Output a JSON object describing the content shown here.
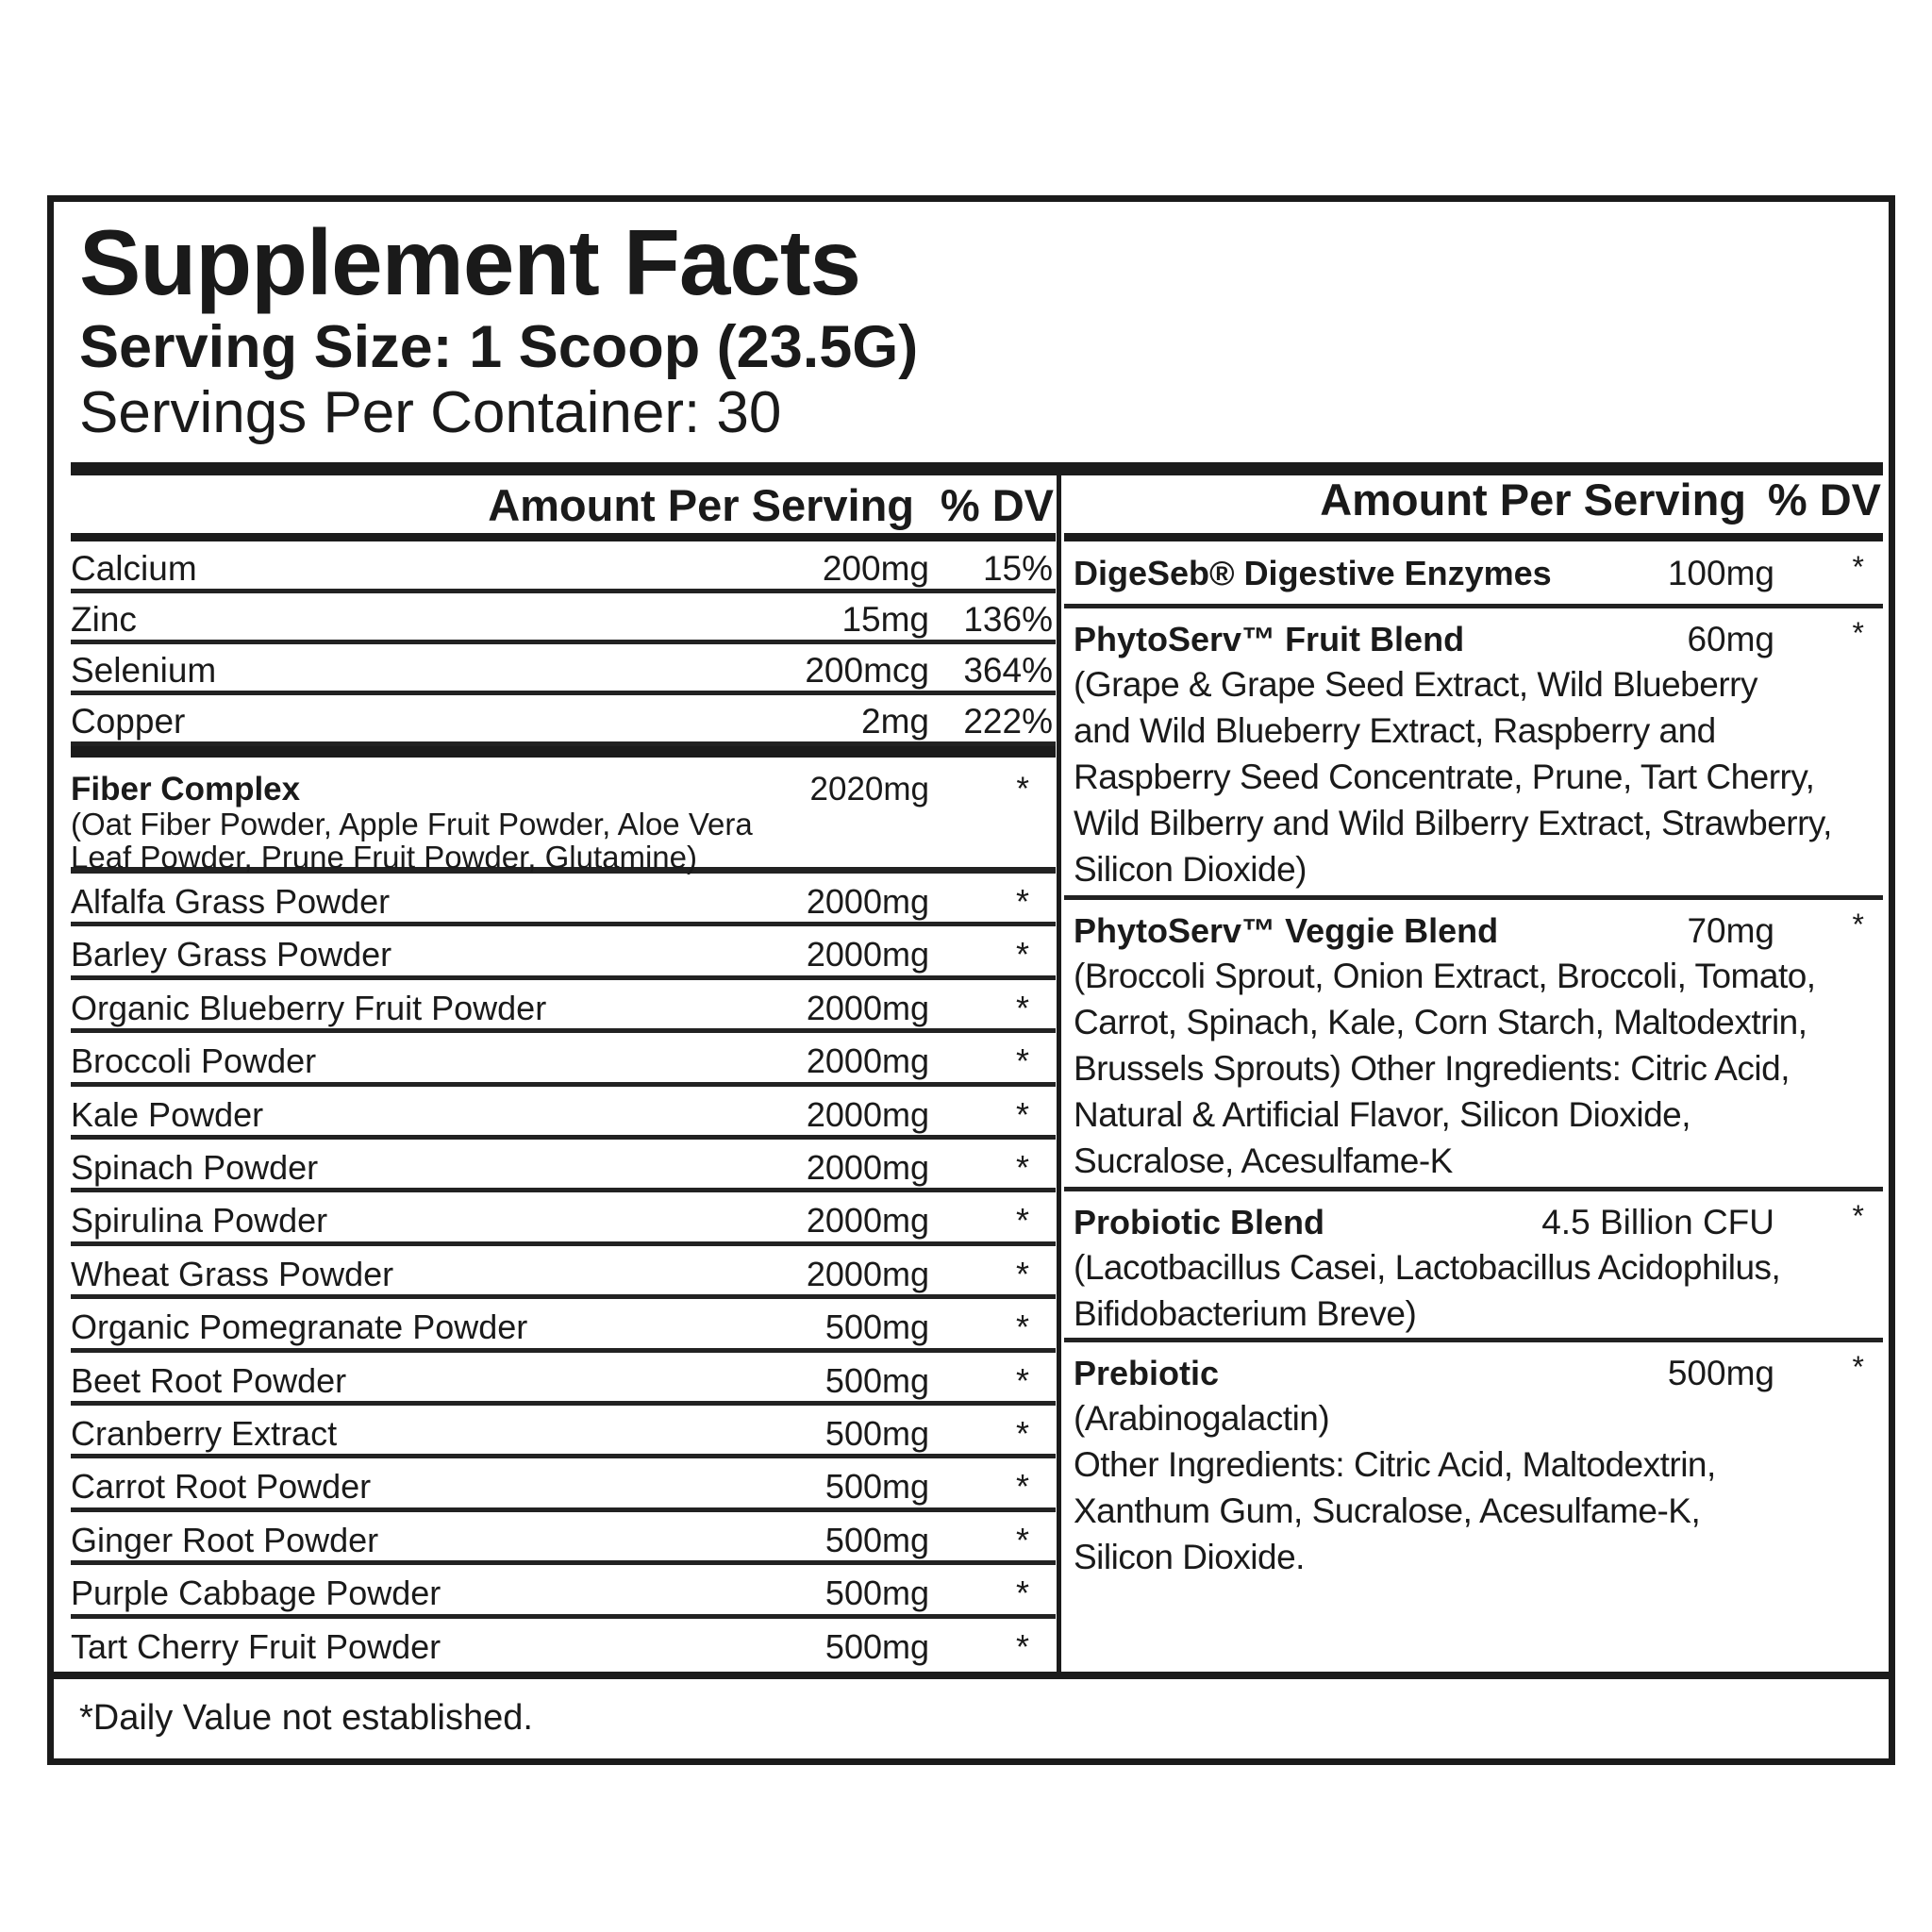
{
  "header": {
    "title": "Supplement Facts",
    "serving_size": "Serving Size: 1 Scoop (23.5G)",
    "servings_per_container": "Servings Per Container: 30"
  },
  "left_table": {
    "column_headers": [
      "Amount Per Serving",
      "% DV"
    ],
    "minerals": [
      {
        "name": "Calcium",
        "amount": "200mg",
        "dv": "15%"
      },
      {
        "name": "Zinc",
        "amount": "15mg",
        "dv": "136%"
      },
      {
        "name": "Selenium",
        "amount": "200mcg",
        "dv": "364%"
      },
      {
        "name": "Copper",
        "amount": "2mg",
        "dv": "222%"
      }
    ],
    "fiber_complex": {
      "name": "Fiber Complex",
      "amount": "2020mg",
      "dv": "*",
      "description": [
        "(Oat Fiber Powder, Apple Fruit Powder, Aloe Vera",
        "Leaf Powder, Prune Fruit Powder, Glutamine)"
      ]
    },
    "ingredients": [
      {
        "name": "Alfalfa Grass Powder",
        "amount": "2000mg",
        "dv": "*"
      },
      {
        "name": "Barley Grass Powder",
        "amount": "2000mg",
        "dv": "*"
      },
      {
        "name": "Organic Blueberry Fruit Powder",
        "amount": "2000mg",
        "dv": "*"
      },
      {
        "name": "Broccoli Powder",
        "amount": "2000mg",
        "dv": "*"
      },
      {
        "name": "Kale Powder",
        "amount": "2000mg",
        "dv": "*"
      },
      {
        "name": "Spinach Powder",
        "amount": "2000mg",
        "dv": "*"
      },
      {
        "name": "Spirulina Powder",
        "amount": "2000mg",
        "dv": "*"
      },
      {
        "name": "Wheat Grass Powder",
        "amount": "2000mg",
        "dv": "*"
      },
      {
        "name": "Organic Pomegranate Powder",
        "amount": "500mg",
        "dv": "*"
      },
      {
        "name": "Beet Root Powder",
        "amount": "500mg",
        "dv": "*"
      },
      {
        "name": "Cranberry Extract",
        "amount": "500mg",
        "dv": "*"
      },
      {
        "name": "Carrot Root Powder",
        "amount": "500mg",
        "dv": "*"
      },
      {
        "name": "Ginger Root Powder",
        "amount": "500mg",
        "dv": "*"
      },
      {
        "name": "Purple Cabbage Powder",
        "amount": "500mg",
        "dv": "*"
      },
      {
        "name": "Tart Cherry Fruit Powder",
        "amount": "500mg",
        "dv": "*"
      }
    ]
  },
  "right_table": {
    "column_headers": [
      "Amount Per Serving",
      "% DV"
    ],
    "blends": [
      {
        "name": "DigeSeb® Digestive Enzymes",
        "amount": "100mg",
        "dv": "*",
        "description": []
      },
      {
        "name": "PhytoServ™ Fruit Blend",
        "amount": "60mg",
        "dv": "*",
        "description": [
          "(Grape & Grape Seed Extract, Wild Blueberry",
          "and Wild Blueberry Extract, Raspberry and",
          "Raspberry Seed Concentrate, Prune, Tart Cherry,",
          "Wild Bilberry and Wild Bilberry Extract, Strawberry,",
          "Silicon Dioxide)"
        ]
      },
      {
        "name": "PhytoServ™ Veggie Blend",
        "amount": "70mg",
        "dv": "*",
        "description": [
          "(Broccoli Sprout, Onion Extract, Broccoli, Tomato,",
          "Carrot, Spinach, Kale, Corn Starch, Maltodextrin,",
          "Brussels Sprouts) Other Ingredients: Citric Acid,",
          "Natural & Artificial Flavor, Silicon Dioxide,",
          "Sucralose, Acesulfame-K"
        ]
      },
      {
        "name": "Probiotic Blend",
        "amount": "4.5 Billion CFU",
        "dv": "*",
        "description": [
          "(Lacotbacillus Casei, Lactobacillus Acidophilus,",
          "Bifidobacterium Breve)"
        ]
      },
      {
        "name": "Prebiotic",
        "amount": "500mg",
        "dv": "*",
        "description": [
          "(Arabinogalactin)",
          "Other Ingredients: Citric Acid, Maltodextrin,",
          "Xanthum Gum, Sucralose, Acesulfame-K,",
          "Silicon Dioxide."
        ]
      }
    ]
  },
  "footnote": "*Daily Value not established."
}
